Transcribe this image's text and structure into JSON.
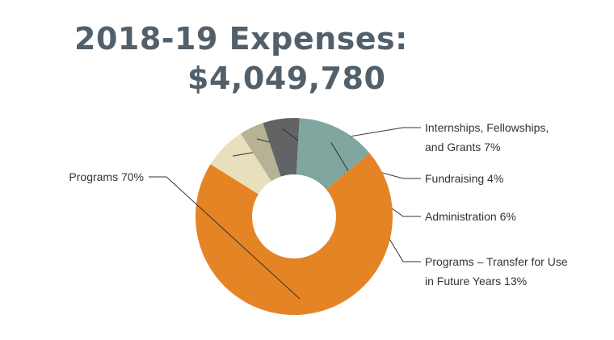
{
  "title": {
    "line1": "2018-19 Expenses:",
    "line2": "$4,049,780"
  },
  "chart_data": {
    "type": "pie",
    "style": "donut",
    "title": "2018-19 Expenses: $4,049,780",
    "categories": [
      "Internships, Fellowships, and Grants",
      "Fundraising",
      "Administration",
      "Programs – Transfer for Use in Future Years",
      "Programs"
    ],
    "values": [
      7,
      4,
      6,
      13,
      70
    ],
    "unit": "%",
    "colors": [
      "#e8dfbd",
      "#b5b295",
      "#626365",
      "#80a6a0",
      "#e58425"
    ],
    "labels": [
      [
        "Internships, Fellowships,",
        "and Grants 7%"
      ],
      [
        "Fundraising 4%"
      ],
      [
        "Administration 6%"
      ],
      [
        "Programs – Transfer for Use",
        "in Future Years 13%"
      ],
      [
        "Programs 70%"
      ]
    ]
  }
}
